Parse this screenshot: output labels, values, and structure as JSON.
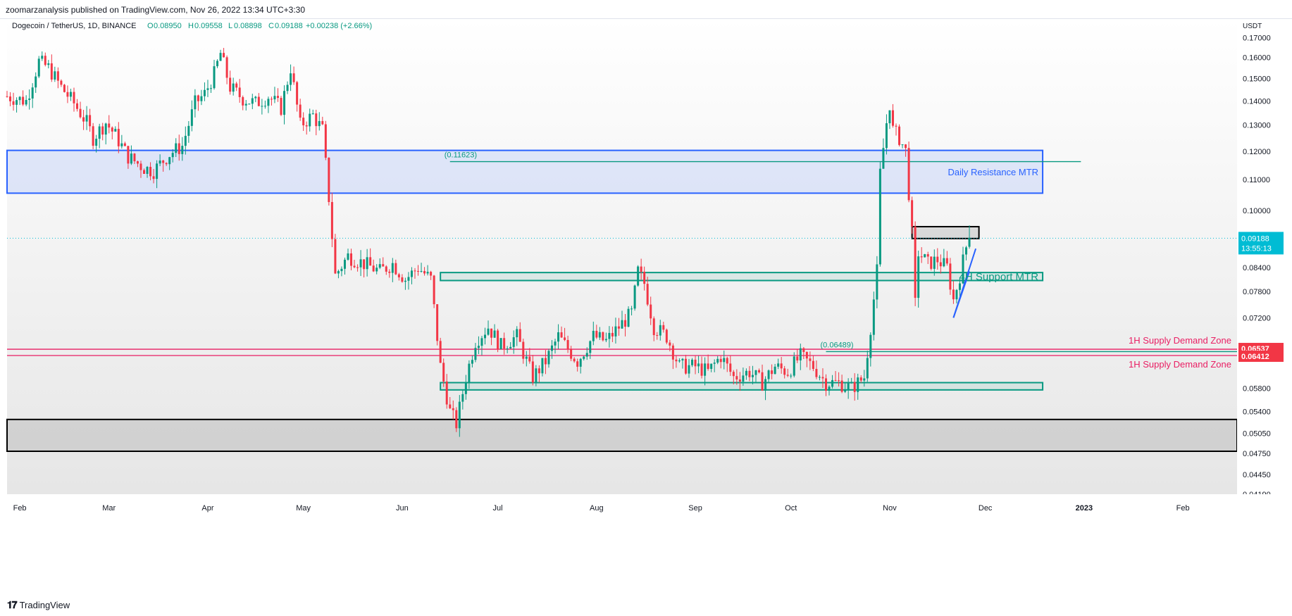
{
  "header": {
    "publish_line": "zoomarzanalysis published on TradingView.com, Nov 26, 2022 13:34 UTC+3:30"
  },
  "legend": {
    "symbol": "Dogecoin / TetherUS, 1D, BINANCE",
    "o_label": "O",
    "o_value": "0.08950",
    "h_label": "H",
    "h_value": "0.09558",
    "l_label": "L",
    "l_value": "0.08898",
    "c_label": "C",
    "c_value": "0.09188",
    "change": "+0.00238 (+2.66%)"
  },
  "footer": {
    "brand": "TradingView",
    "logo_icon": "tradingview-logo-icon"
  },
  "chart_data": {
    "type": "candlestick",
    "currency_label": "USDT",
    "x_labels": [
      "Feb",
      "Mar",
      "Apr",
      "May",
      "Jun",
      "Jul",
      "Aug",
      "Sep",
      "Oct",
      "Nov",
      "Dec",
      "2023",
      "Feb"
    ],
    "x_label_dates": [
      "2022-02-01",
      "2022-03-01",
      "2022-04-01",
      "2022-05-01",
      "2022-06-01",
      "2022-07-01",
      "2022-08-01",
      "2022-09-01",
      "2022-10-01",
      "2022-11-01",
      "2022-12-01",
      "2023-01-01",
      "2023-02-01"
    ],
    "bold_x_labels": [
      "2023"
    ],
    "y_ticks": [
      "0.17000",
      "0.16000",
      "0.15000",
      "0.14000",
      "0.13000",
      "0.12000",
      "0.11000",
      "0.10000",
      "0.08400",
      "0.07800",
      "0.07200",
      "0.05800",
      "0.05400",
      "0.05050",
      "0.04750",
      "0.04450",
      "0.04190"
    ],
    "y_scale": "log",
    "y_range": [
      0.0419,
      0.18
    ],
    "x_range": [
      "2022-01-28",
      "2023-02-18"
    ],
    "last_price": {
      "value": "0.09188",
      "countdown": "13:55:13",
      "date": "2022-11-26",
      "color": "#00bcd4"
    },
    "price_tags": [
      {
        "value": "0.06537",
        "color": "#f23645"
      },
      {
        "value": "0.06412",
        "color": "#f23645"
      }
    ],
    "colors": {
      "up": "#089981",
      "down": "#f23645",
      "resistance": "#2962ff",
      "support": "#089981",
      "supply": "#e91e63"
    },
    "zones": [
      {
        "name": "daily-resistance-zone",
        "label": "Daily Resistance MTR",
        "x_from": "2022-01-28",
        "x_to": "2022-12-19",
        "y_from": 0.1055,
        "y_to": 0.1203,
        "color": "#2962ff"
      },
      {
        "name": "support-zone-4h",
        "label": "4H Support MTR",
        "label_display": "4H Support MTR",
        "x_from": "2022-06-13",
        "x_to": "2022-12-19",
        "y_from": 0.0807,
        "y_to": 0.0827,
        "color": "#089981"
      },
      {
        "name": "support-zone-low",
        "label": "",
        "x_from": "2022-06-13",
        "x_to": "2022-12-19",
        "y_from": 0.0577,
        "y_to": 0.059,
        "color": "#089981"
      },
      {
        "name": "gray-demand-zone",
        "label": "",
        "x_from": "2022-01-28",
        "x_to": "2023-02-18",
        "y_from": 0.0478,
        "y_to": 0.0527,
        "color": "#000000"
      },
      {
        "name": "small-box",
        "label": "",
        "x_from": "2022-11-08",
        "x_to": "2022-11-29",
        "y_from": 0.0918,
        "y_to": 0.0952,
        "color": "#000000"
      }
    ],
    "hlines": [
      {
        "name": "level-011623",
        "label": "(0.11623)",
        "value": 0.11623,
        "x_from": "2022-06-16",
        "x_to": "2022-12-31",
        "color": "#089981"
      },
      {
        "name": "level-006489",
        "label": "(0.06489)",
        "value": 0.06489,
        "x_from": "2022-10-12",
        "x_to": "2023-02-18",
        "color": "#089981"
      },
      {
        "name": "supply-upper",
        "label": "1H Supply Demand Zone",
        "value": 0.06537,
        "x_from": "2022-01-28",
        "x_to": "2023-02-18",
        "color": "#e91e63"
      },
      {
        "name": "supply-lower",
        "label": "1H Supply Demand Zone",
        "value": 0.06412,
        "x_from": "2022-01-28",
        "x_to": "2023-02-18",
        "color": "#e91e63"
      }
    ],
    "trendlines": [
      {
        "name": "rising-wedge-lower",
        "from": [
          "2022-11-21",
          0.072
        ],
        "to": [
          "2022-11-28",
          0.089
        ],
        "color": "#2962ff"
      },
      {
        "name": "rising-wedge-upper",
        "from": [
          "2022-11-21",
          0.072
        ],
        "to": [
          "2022-11-26",
          0.083
        ],
        "color": "#2962ff"
      }
    ],
    "candles_note": "Approximate daily OHLC closes read from the chart",
    "closes": [
      [
        "2022-01-28",
        0.142
      ],
      [
        "2022-02-03",
        0.14
      ],
      [
        "2022-02-07",
        0.158
      ],
      [
        "2022-02-10",
        0.155
      ],
      [
        "2022-02-14",
        0.146
      ],
      [
        "2022-02-18",
        0.139
      ],
      [
        "2022-02-22",
        0.131
      ],
      [
        "2022-02-24",
        0.125
      ],
      [
        "2022-02-28",
        0.131
      ],
      [
        "2022-03-03",
        0.126
      ],
      [
        "2022-03-07",
        0.118
      ],
      [
        "2022-03-12",
        0.114
      ],
      [
        "2022-03-15",
        0.113
      ],
      [
        "2022-03-20",
        0.119
      ],
      [
        "2022-03-24",
        0.122
      ],
      [
        "2022-03-28",
        0.139
      ],
      [
        "2022-03-31",
        0.143
      ],
      [
        "2022-04-03",
        0.152
      ],
      [
        "2022-04-05",
        0.162
      ],
      [
        "2022-04-08",
        0.146
      ],
      [
        "2022-04-12",
        0.141
      ],
      [
        "2022-04-16",
        0.139
      ],
      [
        "2022-04-20",
        0.142
      ],
      [
        "2022-04-24",
        0.137
      ],
      [
        "2022-04-27",
        0.155
      ],
      [
        "2022-04-30",
        0.13
      ],
      [
        "2022-05-04",
        0.134
      ],
      [
        "2022-05-07",
        0.128
      ],
      [
        "2022-05-09",
        0.104
      ],
      [
        "2022-05-11",
        0.082
      ],
      [
        "2022-05-15",
        0.087
      ],
      [
        "2022-05-20",
        0.085
      ],
      [
        "2022-05-25",
        0.083
      ],
      [
        "2022-05-29",
        0.085
      ],
      [
        "2022-06-02",
        0.081
      ],
      [
        "2022-06-06",
        0.084
      ],
      [
        "2022-06-10",
        0.081
      ],
      [
        "2022-06-13",
        0.062
      ],
      [
        "2022-06-16",
        0.054
      ],
      [
        "2022-06-18",
        0.052
      ],
      [
        "2022-06-21",
        0.06
      ],
      [
        "2022-06-24",
        0.067
      ],
      [
        "2022-06-28",
        0.07
      ],
      [
        "2022-07-02",
        0.066
      ],
      [
        "2022-07-07",
        0.068
      ],
      [
        "2022-07-12",
        0.06
      ],
      [
        "2022-07-16",
        0.063
      ],
      [
        "2022-07-20",
        0.068
      ],
      [
        "2022-07-26",
        0.063
      ],
      [
        "2022-07-31",
        0.068
      ],
      [
        "2022-08-04",
        0.067
      ],
      [
        "2022-08-08",
        0.07
      ],
      [
        "2022-08-12",
        0.073
      ],
      [
        "2022-08-14",
        0.083
      ],
      [
        "2022-08-16",
        0.08
      ],
      [
        "2022-08-19",
        0.07
      ],
      [
        "2022-08-23",
        0.068
      ],
      [
        "2022-08-27",
        0.062
      ],
      [
        "2022-09-01",
        0.062
      ],
      [
        "2022-09-05",
        0.061
      ],
      [
        "2022-09-09",
        0.064
      ],
      [
        "2022-09-13",
        0.06
      ],
      [
        "2022-09-18",
        0.061
      ],
      [
        "2022-09-22",
        0.059
      ],
      [
        "2022-09-26",
        0.062
      ],
      [
        "2022-09-30",
        0.061
      ],
      [
        "2022-10-04",
        0.064
      ],
      [
        "2022-10-08",
        0.062
      ],
      [
        "2022-10-12",
        0.059
      ],
      [
        "2022-10-16",
        0.059
      ],
      [
        "2022-10-20",
        0.058
      ],
      [
        "2022-10-24",
        0.06
      ],
      [
        "2022-10-26",
        0.07
      ],
      [
        "2022-10-28",
        0.083
      ],
      [
        "2022-10-29",
        0.112
      ],
      [
        "2022-10-31",
        0.131
      ],
      [
        "2022-11-01",
        0.139
      ],
      [
        "2022-11-02",
        0.128
      ],
      [
        "2022-11-04",
        0.125
      ],
      [
        "2022-11-06",
        0.12
      ],
      [
        "2022-11-08",
        0.093
      ],
      [
        "2022-11-09",
        0.075
      ],
      [
        "2022-11-10",
        0.088
      ],
      [
        "2022-11-13",
        0.085
      ],
      [
        "2022-11-16",
        0.086
      ],
      [
        "2022-11-19",
        0.084
      ],
      [
        "2022-11-21",
        0.076
      ],
      [
        "2022-11-23",
        0.082
      ],
      [
        "2022-11-25",
        0.0895
      ],
      [
        "2022-11-26",
        0.09188
      ]
    ]
  }
}
